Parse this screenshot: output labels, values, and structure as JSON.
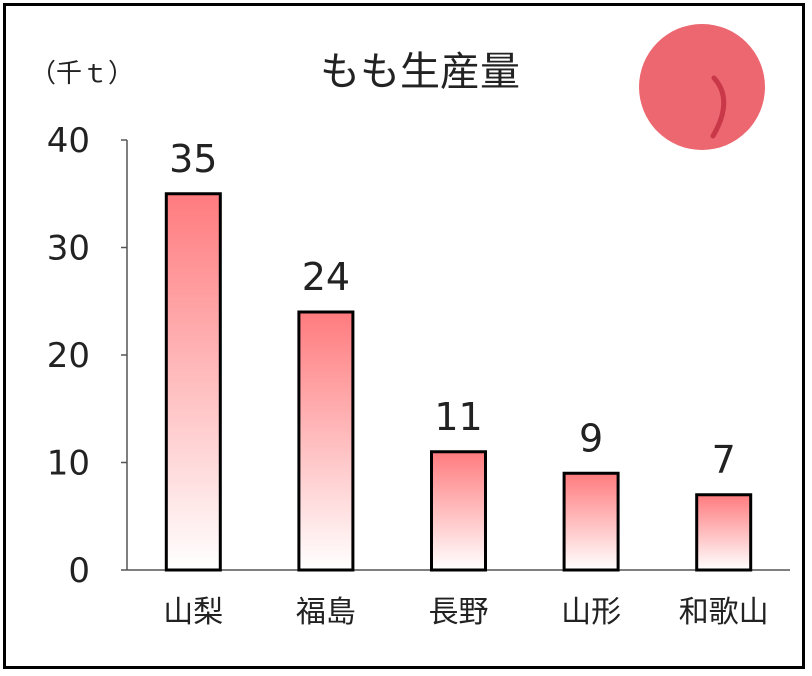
{
  "chart_data": {
    "type": "bar",
    "title": "もも生産量",
    "unit_label": "（千ｔ）",
    "categories": [
      "山梨",
      "福島",
      "長野",
      "山形",
      "和歌山"
    ],
    "values": [
      35,
      24,
      11,
      9,
      7
    ],
    "data_labels": [
      "35",
      "24",
      "11",
      "9",
      "7"
    ],
    "yticks": [
      "0",
      "10",
      "20",
      "30",
      "40"
    ],
    "ylim": [
      0,
      40
    ],
    "grid": false,
    "legend": "none",
    "colors": {
      "bar_top": "#ff7b7e",
      "bar_bottom": "#ffffff",
      "bar_outline": "#000000",
      "axis": "#555555",
      "peach_fill": "#ec6770",
      "peach_stroke": "#c93848"
    },
    "decoration": "peach-icon"
  }
}
